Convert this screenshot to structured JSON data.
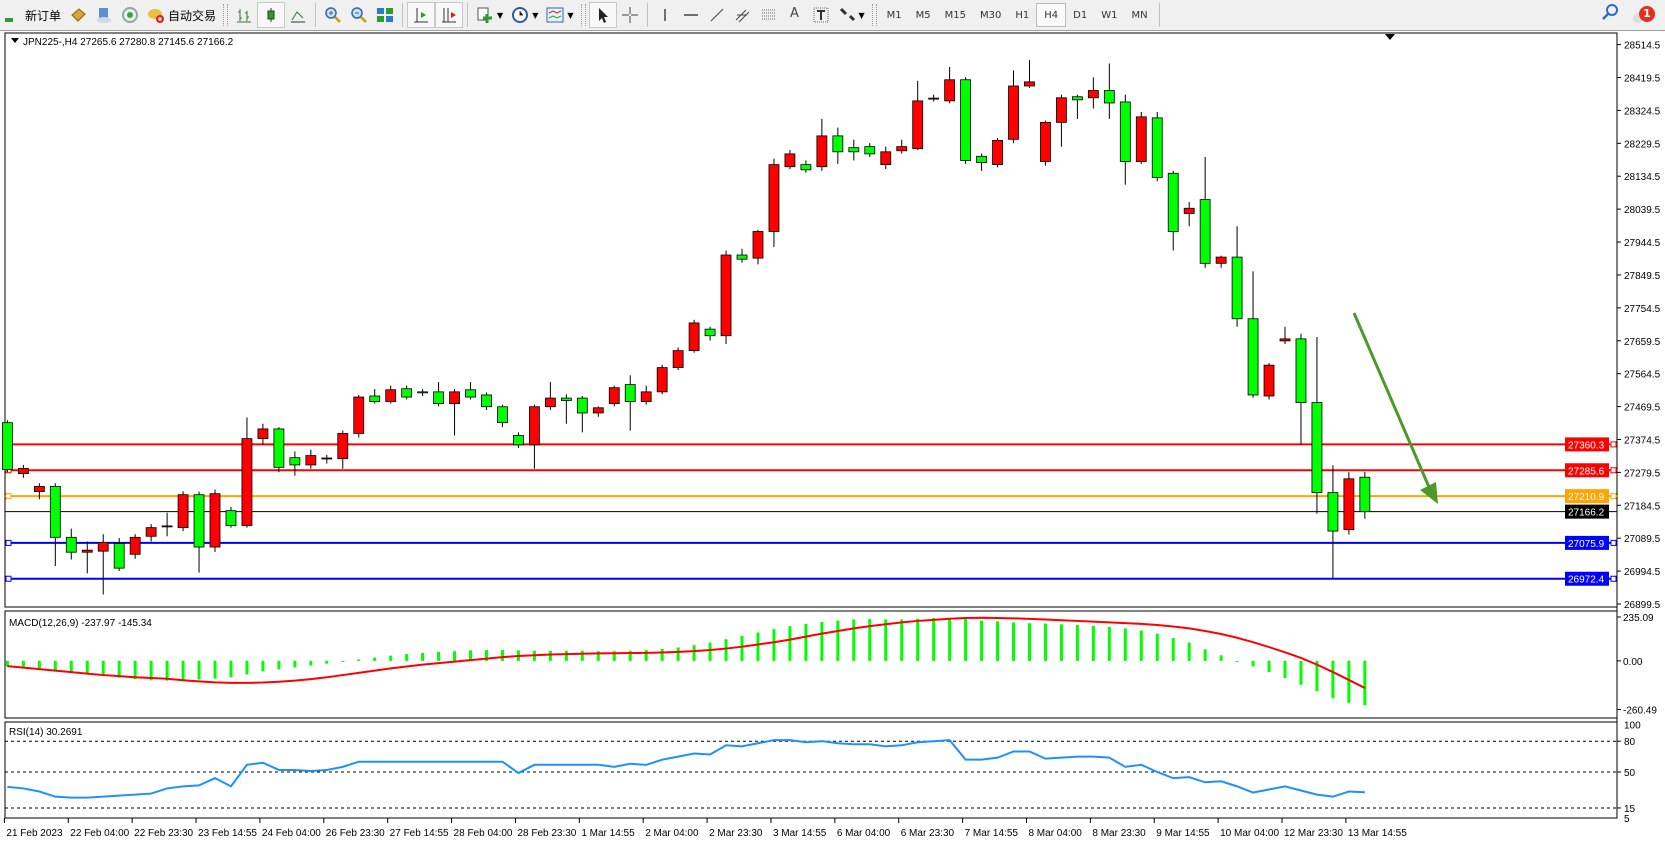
{
  "toolbar": {
    "new_order": "新订单",
    "auto_trading": "自动交易",
    "timeframes": [
      "M1",
      "M5",
      "M15",
      "M30",
      "H1",
      "H4",
      "D1",
      "W1",
      "MN"
    ],
    "active_timeframe": "H4",
    "notification_count": "1"
  },
  "colors": {
    "bull_candle": "#ff0000",
    "bear_candle": "#00ff00",
    "macd_histogram": "#00ff00",
    "macd_signal": "#ff0000",
    "rsi_line": "#1e90ff",
    "arrow": "#4c9a2a"
  },
  "main": {
    "header": "JPN225-,H4  27265.6 27280.8 27145.6 27166.2"
  },
  "macd": {
    "label": "MACD(12,26,9) -237.97 -145.34"
  },
  "rsi": {
    "label": "RSI(14) 30.2691"
  },
  "chart_data": [
    {
      "type": "candlestick",
      "symbol": "JPN225-",
      "timeframe": "H4",
      "ylim": [
        26899.5,
        28514.5
      ],
      "y_ticks": [
        "28514.5",
        "28419.5",
        "28324.5",
        "28229.5",
        "28134.5",
        "28039.5",
        "27944.5",
        "27849.5",
        "27754.5",
        "27659.5",
        "27564.5",
        "27469.5",
        "27374.5",
        "27279.5",
        "27184.5",
        "27089.5",
        "26994.5",
        "26899.5"
      ],
      "x_ticks": [
        "21 Feb 2023",
        "22 Feb 04:00",
        "22 Feb 23:30",
        "23 Feb 14:55",
        "24 Feb 04:00",
        "26 Feb 23:30",
        "27 Feb 14:55",
        "28 Feb 04:00",
        "28 Feb 23:30",
        "1 Mar 14:55",
        "2 Mar 04:00",
        "2 Mar 23:30",
        "3 Mar 14:55",
        "6 Mar 04:00",
        "6 Mar 23:30",
        "7 Mar 14:55",
        "8 Mar 04:00",
        "8 Mar 23:30",
        "9 Mar 14:55",
        "10 Mar 04:00",
        "12 Mar 23:30",
        "13 Mar 14:55"
      ],
      "ohlc": [
        [
          27423,
          27430,
          27280,
          27288
        ],
        [
          27276,
          27301,
          27264,
          27291
        ],
        [
          27224,
          27248,
          27202,
          27239
        ],
        [
          27239,
          27248,
          27009,
          27092
        ],
        [
          27092,
          27117,
          27028,
          27049
        ],
        [
          27049,
          27080,
          26988,
          27055
        ],
        [
          27052,
          27101,
          26927,
          27077
        ],
        [
          27074,
          27090,
          26995,
          27003
        ],
        [
          27043,
          27101,
          27030,
          27092
        ],
        [
          27095,
          27130,
          27080,
          27120
        ],
        [
          27123,
          27163,
          27095,
          27125
        ],
        [
          27120,
          27225,
          27110,
          27215
        ],
        [
          27215,
          27224,
          26990,
          27064
        ],
        [
          27064,
          27230,
          27050,
          27218
        ],
        [
          27169,
          27180,
          27120,
          27126
        ],
        [
          27126,
          27438,
          27120,
          27377
        ],
        [
          27377,
          27420,
          27360,
          27405
        ],
        [
          27405,
          27410,
          27280,
          27294
        ],
        [
          27322,
          27340,
          27270,
          27301
        ],
        [
          27301,
          27345,
          27290,
          27328
        ],
        [
          27319,
          27330,
          27305,
          27321
        ],
        [
          27319,
          27400,
          27290,
          27392
        ],
        [
          27392,
          27503,
          27380,
          27497
        ],
        [
          27500,
          27520,
          27478,
          27484
        ],
        [
          27484,
          27530,
          27478,
          27518
        ],
        [
          27521,
          27530,
          27490,
          27497
        ],
        [
          27512,
          27520,
          27500,
          27510
        ],
        [
          27512,
          27540,
          27470,
          27478
        ],
        [
          27478,
          27520,
          27386,
          27512
        ],
        [
          27518,
          27540,
          27490,
          27497
        ],
        [
          27503,
          27510,
          27460,
          27469
        ],
        [
          27469,
          27475,
          27410,
          27423
        ],
        [
          27386,
          27395,
          27350,
          27359
        ],
        [
          27359,
          27475,
          27290,
          27469
        ],
        [
          27469,
          27540,
          27460,
          27494
        ],
        [
          27494,
          27505,
          27420,
          27487
        ],
        [
          27494,
          27500,
          27395,
          27451
        ],
        [
          27451,
          27470,
          27440,
          27466
        ],
        [
          27478,
          27530,
          27470,
          27524
        ],
        [
          27533,
          27560,
          27400,
          27484
        ],
        [
          27484,
          27530,
          27475,
          27512
        ],
        [
          27512,
          27590,
          27505,
          27582
        ],
        [
          27582,
          27640,
          27575,
          27631
        ],
        [
          27631,
          27720,
          27625,
          27711
        ],
        [
          27693,
          27700,
          27660,
          27674
        ],
        [
          27674,
          27920,
          27650,
          27907
        ],
        [
          27907,
          27925,
          27885,
          27895
        ],
        [
          27898,
          27980,
          27880,
          27975
        ],
        [
          27975,
          28185,
          27930,
          28168
        ],
        [
          28162,
          28210,
          28155,
          28199
        ],
        [
          28168,
          28180,
          28145,
          28153
        ],
        [
          28162,
          28300,
          28150,
          28251
        ],
        [
          28251,
          28275,
          28170,
          28205
        ],
        [
          28217,
          28240,
          28180,
          28205
        ],
        [
          28220,
          28230,
          28190,
          28199
        ],
        [
          28168,
          28220,
          28155,
          28205
        ],
        [
          28208,
          28240,
          28200,
          28220
        ],
        [
          28214,
          28410,
          28210,
          28352
        ],
        [
          28358,
          28370,
          28350,
          28360
        ],
        [
          28352,
          28450,
          28345,
          28413
        ],
        [
          28413,
          28420,
          28170,
          28180
        ],
        [
          28192,
          28200,
          28150,
          28174
        ],
        [
          28168,
          28245,
          28160,
          28238
        ],
        [
          28241,
          28440,
          28230,
          28395
        ],
        [
          28395,
          28470,
          28390,
          28407
        ],
        [
          28177,
          28295,
          28165,
          28290
        ],
        [
          28290,
          28370,
          28220,
          28361
        ],
        [
          28364,
          28370,
          28300,
          28355
        ],
        [
          28361,
          28420,
          28330,
          28382
        ],
        [
          28382,
          28460,
          28300,
          28346
        ],
        [
          28349,
          28370,
          28110,
          28177
        ],
        [
          28177,
          28320,
          28170,
          28306
        ],
        [
          28303,
          28320,
          28120,
          28131
        ],
        [
          28143,
          28150,
          27920,
          27975
        ],
        [
          28027,
          28060,
          27990,
          28042
        ],
        [
          28067,
          28190,
          27870,
          27883
        ],
        [
          27883,
          27905,
          27870,
          27901
        ],
        [
          27901,
          27990,
          27700,
          27723
        ],
        [
          27723,
          27860,
          27495,
          27503
        ],
        [
          27500,
          27595,
          27490,
          27589
        ],
        [
          27659,
          27700,
          27650,
          27665
        ],
        [
          27665,
          27680,
          27360,
          27481
        ],
        [
          27481,
          27670,
          27160,
          27221
        ],
        [
          27221,
          27300,
          26972,
          27110
        ],
        [
          27114,
          27280,
          27100,
          27261
        ],
        [
          27265.6,
          27280.8,
          27145.6,
          27166.2
        ]
      ],
      "levels": [
        {
          "price": 27360.3,
          "label": "27360.3",
          "color": "#ff0000"
        },
        {
          "price": 27285.6,
          "label": "27285.6",
          "color": "#ff0000"
        },
        {
          "price": 27210.9,
          "label": "27210.9",
          "color": "#ffa500"
        },
        {
          "price": 27075.9,
          "label": "27075.9",
          "color": "#0000ff"
        },
        {
          "price": 26972.4,
          "label": "26972.4",
          "color": "#0000ff"
        }
      ],
      "bid": {
        "price": 27166.2,
        "label": "27166.2",
        "color": "#000000"
      }
    },
    {
      "type": "bar",
      "name": "MACD(12,26,9)",
      "y_ticks": [
        "235.09",
        "0.00",
        "-260.49"
      ],
      "ylim": [
        -260.49,
        235.09
      ],
      "histogram": [
        -30,
        -35,
        -42,
        -52,
        -62,
        -72,
        -82,
        -90,
        -98,
        -104,
        -106,
        -104,
        -100,
        -95,
        -88,
        -72,
        -56,
        -45,
        -35,
        -25,
        -15,
        -5,
        8,
        18,
        28,
        36,
        42,
        48,
        52,
        56,
        58,
        58,
        56,
        54,
        54,
        54,
        54,
        52,
        52,
        54,
        58,
        64,
        72,
        84,
        98,
        116,
        134,
        152,
        170,
        186,
        198,
        208,
        216,
        222,
        224,
        222,
        222,
        225,
        230,
        230,
        225,
        216,
        212,
        206,
        202,
        200,
        196,
        192,
        188,
        182,
        174,
        162,
        146,
        122,
        98,
        62,
        30,
        0,
        -30,
        -60,
        -92,
        -128,
        -162,
        -200,
        -225,
        -237.97
      ],
      "signal": [
        -28,
        -36,
        -44,
        -52,
        -60,
        -68,
        -76,
        -82,
        -88,
        -92,
        -96,
        -104,
        -110,
        -115,
        -118,
        -118,
        -116,
        -112,
        -106,
        -98,
        -88,
        -76,
        -64,
        -52,
        -40,
        -30,
        -20,
        -12,
        -4,
        4,
        12,
        20,
        26,
        30,
        34,
        36,
        38,
        40,
        41,
        42,
        43,
        45,
        48,
        52,
        58,
        66,
        76,
        88,
        100,
        114,
        130,
        146,
        160,
        174,
        186,
        196,
        206,
        214,
        220,
        226,
        230,
        231,
        230,
        228,
        225,
        222,
        218,
        214,
        210,
        206,
        202,
        198,
        192,
        184,
        174,
        160,
        144,
        124,
        100,
        74,
        46,
        16,
        -20,
        -60,
        -102,
        -145.34
      ]
    },
    {
      "type": "line",
      "name": "RSI(14)",
      "y_ticks": [
        "100",
        "80",
        "50",
        "15",
        "5"
      ],
      "levels": [
        80,
        50,
        15
      ],
      "ylim": [
        0,
        100
      ],
      "values": [
        35.5,
        34,
        31,
        26,
        25,
        25,
        26,
        27,
        28,
        29,
        34,
        36,
        37,
        44,
        36,
        57,
        59,
        52,
        52,
        51,
        52,
        55,
        60,
        60,
        60,
        60,
        60,
        60,
        60,
        60,
        60,
        60,
        49,
        57,
        57,
        57,
        57,
        57,
        55,
        58,
        57,
        62,
        65,
        68,
        67,
        76,
        75,
        78,
        81,
        81,
        79,
        80,
        78,
        77,
        77,
        75,
        76,
        79,
        80,
        81,
        62,
        62,
        64,
        70,
        70,
        63,
        64,
        65,
        65,
        64,
        55,
        57,
        50,
        44,
        45,
        40,
        41,
        36,
        30,
        33,
        36,
        32,
        28,
        26,
        31,
        30.2691
      ]
    }
  ]
}
